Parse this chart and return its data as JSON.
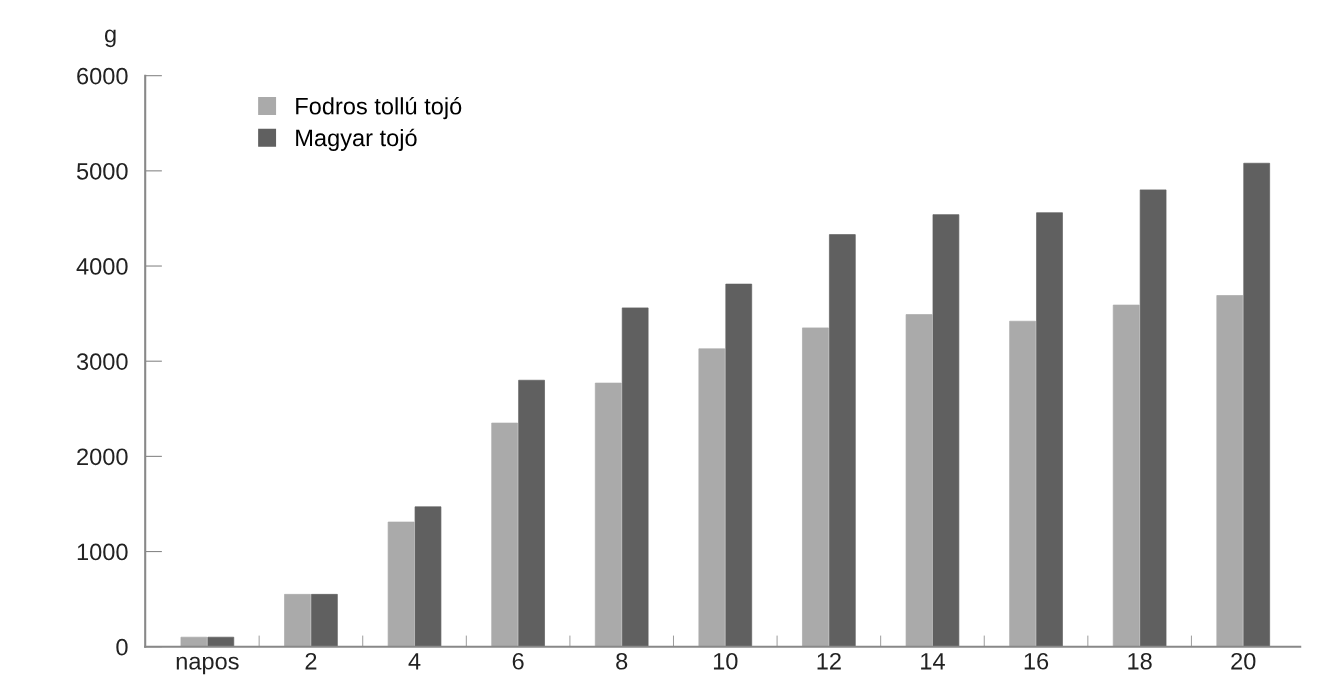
{
  "chart_data": {
    "type": "bar",
    "ylabel": "g",
    "categories": [
      "napos",
      "2",
      "4",
      "6",
      "8",
      "10",
      "12",
      "14",
      "16",
      "18",
      "20"
    ],
    "series": [
      {
        "name": "Fodros tollú tojó",
        "color": "#aaaaaa",
        "values": [
          100,
          550,
          1310,
          2350,
          2770,
          3130,
          3350,
          3490,
          3420,
          3590,
          3690
        ]
      },
      {
        "name": "Magyar tojó",
        "color": "#606060",
        "values": [
          100,
          550,
          1470,
          2800,
          3560,
          3810,
          4330,
          4540,
          4560,
          4800,
          5080
        ]
      }
    ],
    "ylim": [
      0,
      6000
    ],
    "yticks": [
      0,
      1000,
      2000,
      3000,
      4000,
      5000,
      6000
    ],
    "grid": false,
    "legend": "top left"
  }
}
